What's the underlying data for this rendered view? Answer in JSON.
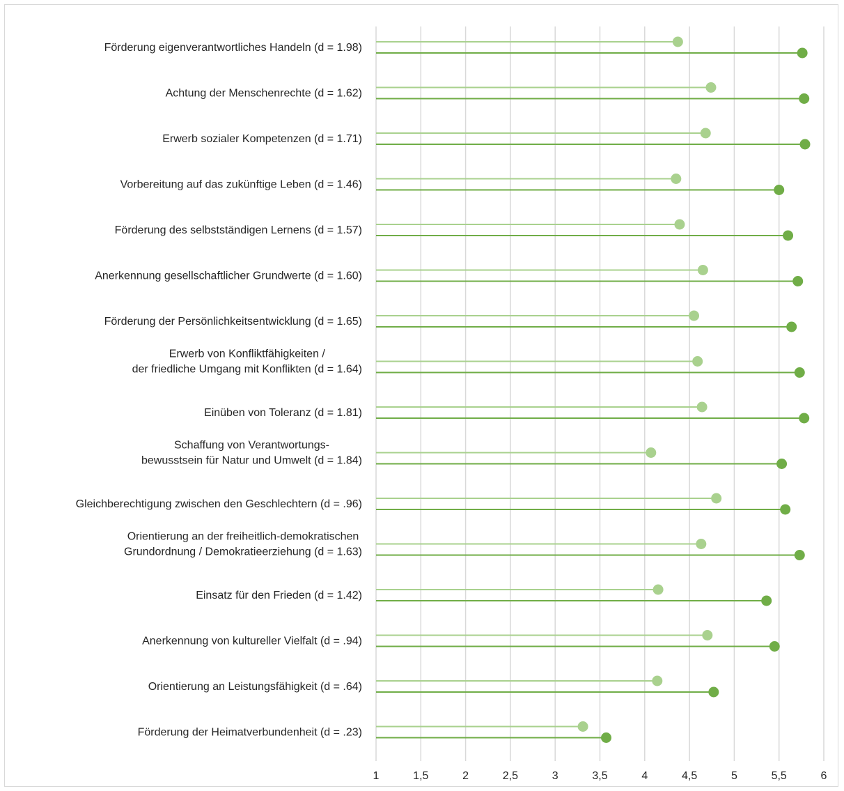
{
  "chart_data": {
    "type": "lollipop",
    "title": "",
    "xlabel": "",
    "ylabel": "",
    "xlim": [
      1,
      6
    ],
    "x_ticks": [
      "1",
      "1,5",
      "2",
      "2,5",
      "3",
      "3,5",
      "4",
      "4,5",
      "5",
      "5,5",
      "6"
    ],
    "x_tick_values": [
      1,
      1.5,
      2,
      2.5,
      3,
      3.5,
      4,
      4.5,
      5,
      5.5,
      6
    ],
    "grid": "vertical",
    "legend": "none",
    "colors": {
      "series1": "#a9d18e",
      "series2": "#70ad47",
      "grid": "#d9d9d9"
    },
    "categories": [
      [
        "Förderung eigenverantwortliches Handeln (d = 1.98)"
      ],
      [
        "Achtung der Menschenrechte (d = 1.62)"
      ],
      [
        "Erwerb sozialer Kompetenzen (d = 1.71)"
      ],
      [
        "Vorbereitung auf das zukünftige Leben (d = 1.46)"
      ],
      [
        "Förderung des selbstständigen Lernens (d = 1.57)"
      ],
      [
        "Anerkennung gesellschaftlicher Grundwerte (d = 1.60)"
      ],
      [
        "Förderung der Persönlichkeitsentwicklung (d = 1.65)"
      ],
      [
        "Erwerb von Konfliktfähigkeiten /",
        "der friedliche Umgang mit Konflikten (d = 1.64)"
      ],
      [
        "Einüben von Toleranz (d = 1.81)"
      ],
      [
        "Schaffung von Verantwortungs-",
        "bewusstsein für Natur und Umwelt (d = 1.84)"
      ],
      [
        "Gleichberechtigung zwischen den Geschlechtern (d = .96)"
      ],
      [
        "Orientierung an der freiheitlich-demokratischen",
        "Grundordnung / Demokratieerziehung (d = 1.63)"
      ],
      [
        "Einsatz für den Frieden (d = 1.42)"
      ],
      [
        "Anerkennung von kultureller Vielfalt (d = .94)"
      ],
      [
        "Orientierung an Leistungsfähigkeit (d = .64)"
      ],
      [
        "Förderung der Heimatverbundenheit (d = .23)"
      ]
    ],
    "series": [
      {
        "values": [
          4.37,
          4.74,
          4.68,
          4.35,
          4.39,
          4.65,
          4.55,
          4.59,
          4.64,
          4.07,
          4.8,
          4.63,
          4.15,
          4.7,
          4.14,
          3.31
        ]
      },
      {
        "values": [
          5.76,
          5.78,
          5.79,
          5.5,
          5.6,
          5.71,
          5.64,
          5.73,
          5.78,
          5.53,
          5.57,
          5.73,
          5.36,
          5.45,
          4.77,
          3.57
        ]
      }
    ]
  }
}
